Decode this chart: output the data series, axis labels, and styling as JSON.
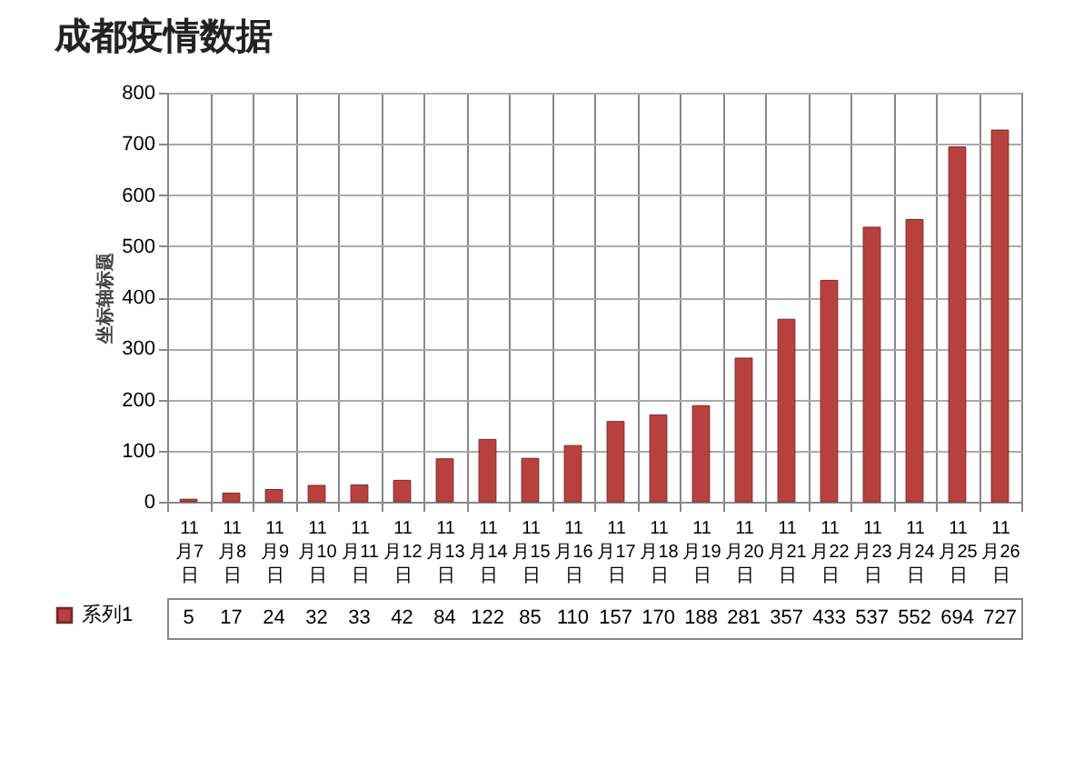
{
  "chart_data": {
    "type": "bar",
    "title": "成都疫情数据",
    "ylabel": "坐标轴标题",
    "categories": [
      "11月7日",
      "11月8日",
      "11月9日",
      "11月10日",
      "11月11日",
      "11月12日",
      "11月13日",
      "11月14日",
      "11月15日",
      "11月16日",
      "11月17日",
      "11月18日",
      "11月19日",
      "11月20日",
      "11月21日",
      "11月22日",
      "11月23日",
      "11月24日",
      "11月25日",
      "11月26日"
    ],
    "series": [
      {
        "name": "系列1",
        "color": "#b8413f",
        "values": [
          5,
          17,
          24,
          32,
          33,
          42,
          84,
          122,
          85,
          110,
          157,
          170,
          188,
          281,
          357,
          433,
          537,
          552,
          694,
          727
        ]
      }
    ],
    "ylim": [
      0,
      800
    ],
    "yticks": [
      0,
      100,
      200,
      300,
      400,
      500,
      600,
      700,
      800
    ],
    "grid": "y",
    "legend": "bottom left",
    "data_labels": true
  }
}
